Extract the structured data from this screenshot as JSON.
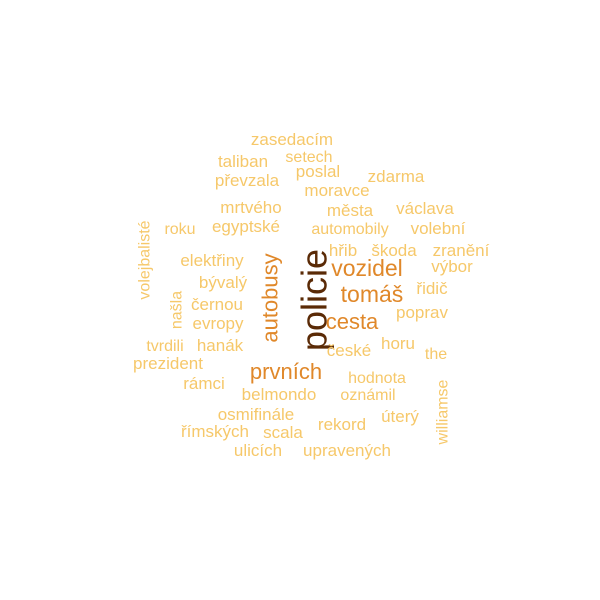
{
  "colors": {
    "darkest": "#5a2a06",
    "dark": "#b8560e",
    "mid": "#e0882a",
    "light": "#f2b44a",
    "lightest": "#f6c86a",
    "background": "#ffffff"
  },
  "words": [
    {
      "text": "policie",
      "color": "darkest",
      "rotated": true
    },
    {
      "text": "autobusy",
      "color": "mid",
      "rotated": true
    },
    {
      "text": "vozidel",
      "color": "mid",
      "rotated": false
    },
    {
      "text": "tomáš",
      "color": "mid",
      "rotated": false
    },
    {
      "text": "cesta",
      "color": "mid",
      "rotated": false
    },
    {
      "text": "prvních",
      "color": "mid",
      "rotated": false
    },
    {
      "text": "zasedacím",
      "color": "lightest",
      "rotated": false
    },
    {
      "text": "taliban",
      "color": "lightest",
      "rotated": false
    },
    {
      "text": "setech",
      "color": "lightest",
      "rotated": false
    },
    {
      "text": "poslal",
      "color": "lightest",
      "rotated": false
    },
    {
      "text": "převzala",
      "color": "lightest",
      "rotated": false
    },
    {
      "text": "zdarma",
      "color": "lightest",
      "rotated": false
    },
    {
      "text": "moravce",
      "color": "lightest",
      "rotated": false
    },
    {
      "text": "mrtvého",
      "color": "lightest",
      "rotated": false
    },
    {
      "text": "města",
      "color": "lightest",
      "rotated": false
    },
    {
      "text": "václava",
      "color": "lightest",
      "rotated": false
    },
    {
      "text": "roku",
      "color": "lightest",
      "rotated": false
    },
    {
      "text": "egyptské",
      "color": "lightest",
      "rotated": false
    },
    {
      "text": "automobily",
      "color": "lightest",
      "rotated": false
    },
    {
      "text": "volební",
      "color": "lightest",
      "rotated": false
    },
    {
      "text": "volejbalisté",
      "color": "lightest",
      "rotated": true
    },
    {
      "text": "hřib",
      "color": "lightest",
      "rotated": false
    },
    {
      "text": "škoda",
      "color": "lightest",
      "rotated": false
    },
    {
      "text": "zranění",
      "color": "lightest",
      "rotated": false
    },
    {
      "text": "elektřiny",
      "color": "lightest",
      "rotated": false
    },
    {
      "text": "výbor",
      "color": "lightest",
      "rotated": false
    },
    {
      "text": "bývalý",
      "color": "lightest",
      "rotated": false
    },
    {
      "text": "řidič",
      "color": "lightest",
      "rotated": false
    },
    {
      "text": "našla",
      "color": "lightest",
      "rotated": true
    },
    {
      "text": "černou",
      "color": "lightest",
      "rotated": false
    },
    {
      "text": "poprav",
      "color": "lightest",
      "rotated": false
    },
    {
      "text": "evropy",
      "color": "lightest",
      "rotated": false
    },
    {
      "text": "tvrdili",
      "color": "lightest",
      "rotated": false
    },
    {
      "text": "hanák",
      "color": "lightest",
      "rotated": false
    },
    {
      "text": "české",
      "color": "lightest",
      "rotated": false
    },
    {
      "text": "horu",
      "color": "lightest",
      "rotated": false
    },
    {
      "text": "the",
      "color": "lightest",
      "rotated": false
    },
    {
      "text": "prezident",
      "color": "lightest",
      "rotated": false
    },
    {
      "text": "hodnota",
      "color": "lightest",
      "rotated": false
    },
    {
      "text": "rámci",
      "color": "lightest",
      "rotated": false
    },
    {
      "text": "williamse",
      "color": "lightest",
      "rotated": true
    },
    {
      "text": "belmondo",
      "color": "lightest",
      "rotated": false
    },
    {
      "text": "oznámil",
      "color": "lightest",
      "rotated": false
    },
    {
      "text": "osmifinále",
      "color": "lightest",
      "rotated": false
    },
    {
      "text": "úterý",
      "color": "lightest",
      "rotated": false
    },
    {
      "text": "rekord",
      "color": "lightest",
      "rotated": false
    },
    {
      "text": "římských",
      "color": "lightest",
      "rotated": false
    },
    {
      "text": "scala",
      "color": "lightest",
      "rotated": false
    },
    {
      "text": "ulicích",
      "color": "lightest",
      "rotated": false
    },
    {
      "text": "upravených",
      "color": "lightest",
      "rotated": false
    }
  ]
}
